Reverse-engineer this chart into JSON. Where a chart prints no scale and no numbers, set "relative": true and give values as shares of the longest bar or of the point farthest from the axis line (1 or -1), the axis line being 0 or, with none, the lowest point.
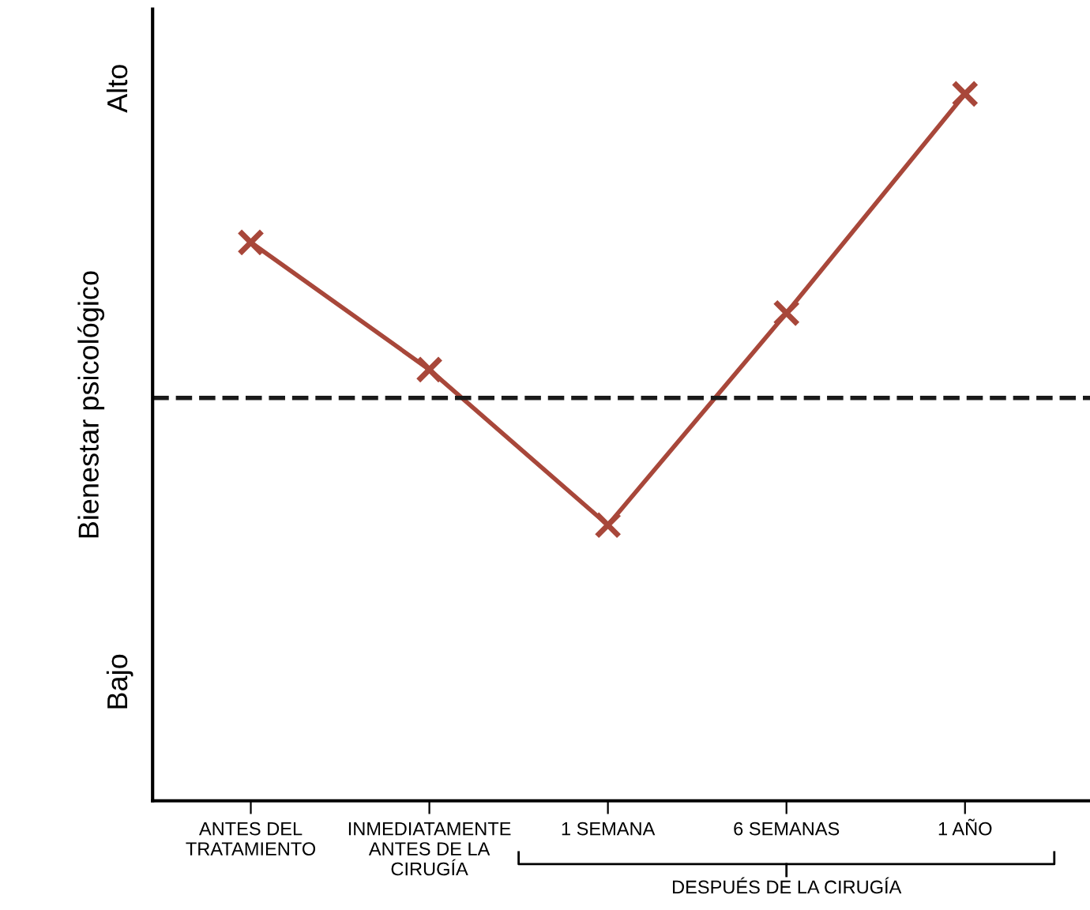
{
  "chart_data": {
    "type": "line",
    "relative": true,
    "ylabel": "Bienestar psicológico",
    "categories": [
      "ANTES DEL\nTRATAMIENTO",
      "INMEDIATAMENTE\nANTES DE LA\nCIRUGÍA",
      "1 SEMANA",
      "6 SEMANAS",
      "1 AÑO"
    ],
    "series": [
      {
        "color": "#a8473a",
        "values": [
          0.79,
          0.61,
          0.39,
          0.69,
          1
        ]
      }
    ],
    "marker": "cross",
    "line_style": "solid",
    "grid": false,
    "legend": false,
    "tick_labels": "x",
    "ref_lines": [
      {
        "axis": "y",
        "value": 0.57,
        "color": "#1a1a1a",
        "line_style": "dashed"
      }
    ],
    "annotations": [
      "Alto",
      "Bajo",
      "DESPUÉS DE LA CIRUGÍA"
    ]
  }
}
